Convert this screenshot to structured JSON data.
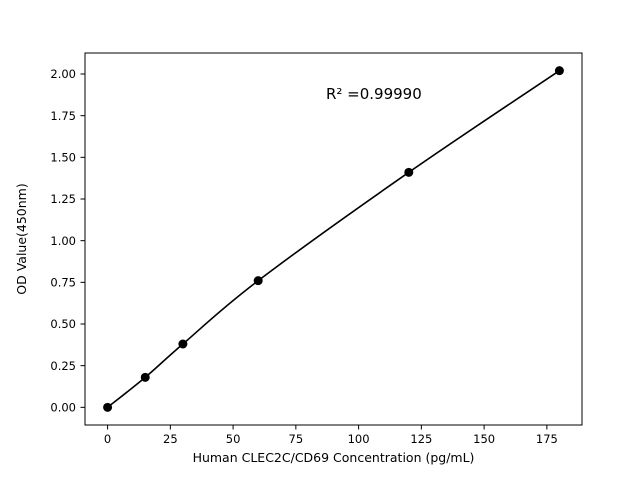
{
  "chart_data": {
    "type": "line",
    "title": "",
    "xlabel": "Human CLEC2C/CD69 Concentration (pg/mL)",
    "ylabel": "OD Value(450nm)",
    "x": [
      0,
      15,
      30,
      60,
      120,
      180
    ],
    "y": [
      0.0,
      0.18,
      0.38,
      0.76,
      1.41,
      2.02
    ],
    "annotation": "R² =0.99990",
    "annotation_x": 87,
    "annotation_y": 1.85,
    "xlim": [
      -9,
      189
    ],
    "ylim": [
      -0.106,
      2.126
    ],
    "xticks": [
      0,
      25,
      50,
      75,
      100,
      125,
      150,
      175
    ],
    "yticks": [
      0.0,
      0.25,
      0.5,
      0.75,
      1.0,
      1.25,
      1.5,
      1.75,
      2.0
    ],
    "grid": false,
    "legend": "none",
    "line_color": "#000000",
    "marker": "circle",
    "marker_color": "#000000",
    "marker_radius": 4.5,
    "background": "#ffffff",
    "frame_color": "#000000"
  }
}
